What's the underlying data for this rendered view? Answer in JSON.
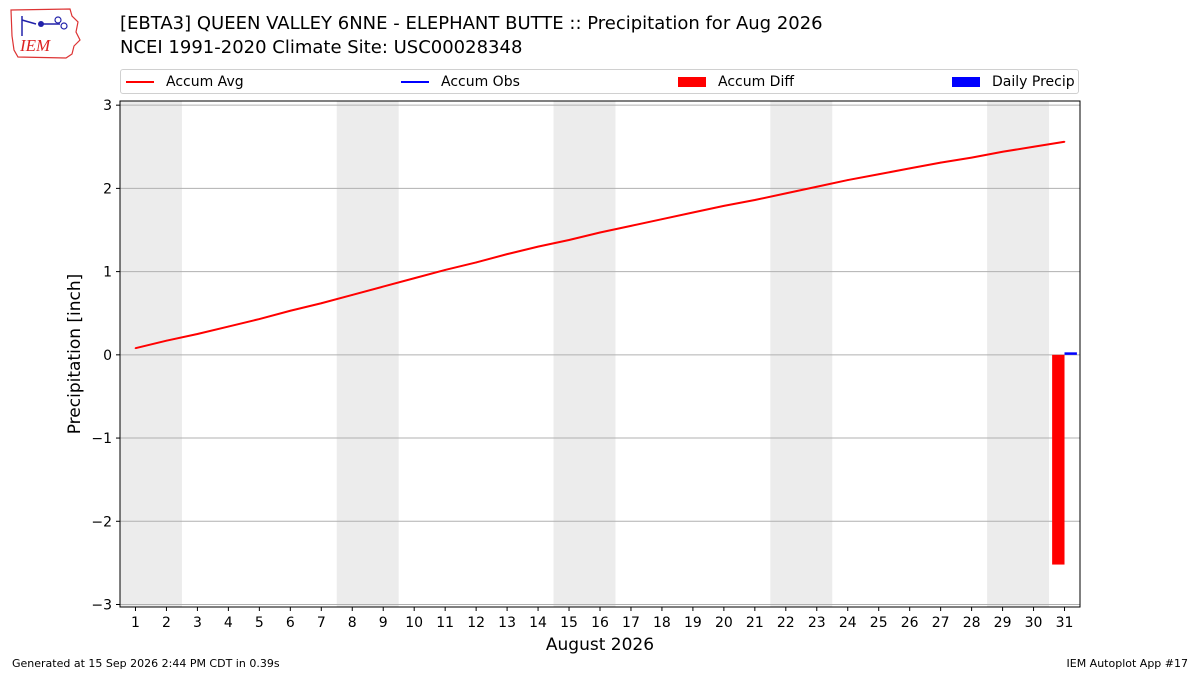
{
  "header": {
    "logo_text": "IEM",
    "title_line1": "[EBTA3] QUEEN VALLEY 6NNE -  ELEPHANT BUTTE :: Precipitation for Aug 2026",
    "title_line2": "NCEI 1991-2020 Climate Site: USC00028348"
  },
  "legend": [
    {
      "label": "Accum Avg",
      "kind": "line",
      "color": "#ff0000"
    },
    {
      "label": "Accum Obs",
      "kind": "line",
      "color": "#0000ff"
    },
    {
      "label": "Accum Diff",
      "kind": "box",
      "color": "#ff0000"
    },
    {
      "label": "Daily Precip",
      "kind": "box",
      "color": "#0000ff"
    }
  ],
  "footer": {
    "left": "Generated at 15 Sep 2026 2:44 PM CDT in 0.39s",
    "right": "IEM Autoplot App #17"
  },
  "chart_data": {
    "type": "line",
    "xlabel": "August 2026",
    "ylabel": "Precipitation [inch]",
    "x": [
      1,
      2,
      3,
      4,
      5,
      6,
      7,
      8,
      9,
      10,
      11,
      12,
      13,
      14,
      15,
      16,
      17,
      18,
      19,
      20,
      21,
      22,
      23,
      24,
      25,
      26,
      27,
      28,
      29,
      30,
      31
    ],
    "xlim": [
      0.5,
      31.5
    ],
    "ylim": [
      -3.03,
      3.05
    ],
    "yticks": [
      3,
      2,
      1,
      0,
      -1,
      -2,
      -3
    ],
    "ytick_labels": [
      "3",
      "2",
      "1",
      "0",
      "−1",
      "−2",
      "−3"
    ],
    "grid": "horizontal",
    "weekend_shading": [
      [
        0.5,
        2.5
      ],
      [
        7.5,
        9.5
      ],
      [
        14.5,
        16.5
      ],
      [
        21.5,
        23.5
      ],
      [
        28.5,
        30.5
      ]
    ],
    "series": [
      {
        "name": "Accum Avg",
        "kind": "line",
        "color": "#ff0000",
        "values": [
          0.08,
          0.17,
          0.25,
          0.34,
          0.43,
          0.53,
          0.62,
          0.72,
          0.82,
          0.92,
          1.02,
          1.11,
          1.21,
          1.3,
          1.38,
          1.47,
          1.55,
          1.63,
          1.71,
          1.79,
          1.86,
          1.94,
          2.02,
          2.1,
          2.17,
          2.24,
          2.31,
          2.37,
          2.44,
          2.5,
          2.56
        ]
      },
      {
        "name": "Accum Diff",
        "kind": "bar",
        "color": "#ff0000",
        "x": [
          31
        ],
        "values": [
          -2.52
        ]
      },
      {
        "name": "Daily Precip",
        "kind": "bar",
        "color": "#0000ff",
        "x": [
          31
        ],
        "values": [
          0.03
        ]
      }
    ]
  }
}
